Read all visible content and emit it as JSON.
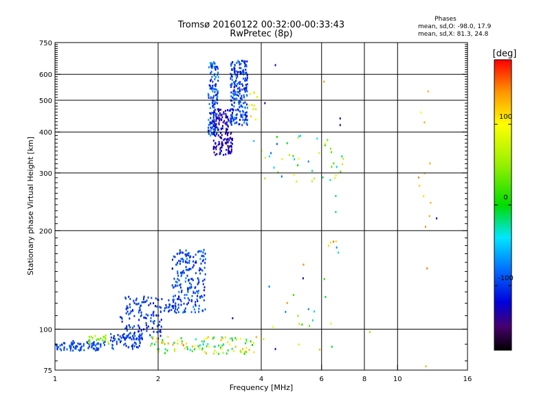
{
  "chart_data": {
    "type": "scatter",
    "title": "Tromsø 20160122 00:32:00-00:33:43",
    "subtitle": "RwPretec (8p)",
    "stats": {
      "heading": "Phases",
      "line1": "mean, sd,O: -98.0, 17.9",
      "line2": "mean, sd,X:  81.3, 24.8"
    },
    "xlabel": "Frequency [MHz]",
    "ylabel": "Stationary phase Virtual Height [km]",
    "xscale": "log",
    "yscale": "log",
    "xlim": [
      1,
      16
    ],
    "ylim": [
      75,
      750
    ],
    "xticks": [
      1,
      2,
      4,
      6,
      8,
      10,
      16
    ],
    "xtick_labels": [
      "1",
      "2",
      "4",
      "6",
      "8",
      "10",
      "16"
    ],
    "yticks": [
      75,
      100,
      200,
      300,
      400,
      500,
      600,
      750
    ],
    "ytick_labels": [
      "75",
      "100",
      "200",
      "300",
      "400",
      "500",
      "600",
      "750"
    ],
    "grid": true,
    "colorbar": {
      "label": "[deg]",
      "range": [
        -180,
        180
      ],
      "ticks": [
        100,
        0,
        -100
      ],
      "tick_labels": [
        "100",
        "0",
        "-100"
      ]
    },
    "clusters": [
      {
        "x_range": [
          1.0,
          1.4
        ],
        "y_range": [
          86,
          92
        ],
        "phase_range": [
          -110,
          -80
        ],
        "count": 90
      },
      {
        "x_range": [
          1.25,
          1.45
        ],
        "y_range": [
          89,
          96
        ],
        "phase_range": [
          20,
          90
        ],
        "count": 22
      },
      {
        "x_range": [
          1.45,
          1.8
        ],
        "y_range": [
          87,
          97
        ],
        "phase_range": [
          -120,
          -80
        ],
        "count": 70
      },
      {
        "x_range": [
          1.55,
          2.05
        ],
        "y_range": [
          93,
          112
        ],
        "phase_range": [
          -120,
          -85
        ],
        "count": 75
      },
      {
        "x_range": [
          1.6,
          2.3
        ],
        "y_range": [
          112,
          126
        ],
        "phase_range": [
          -115,
          -85
        ],
        "count": 80
      },
      {
        "x_range": [
          2.2,
          2.75
        ],
        "y_range": [
          112,
          175
        ],
        "phase_range": [
          -120,
          -70
        ],
        "count": 200
      },
      {
        "x_range": [
          1.9,
          3.9
        ],
        "y_range": [
          84,
          95
        ],
        "phase_range": [
          -60,
          150
        ],
        "count": 110
      },
      {
        "x_range": [
          2.8,
          3.0
        ],
        "y_range": [
          390,
          660
        ],
        "phase_range": [
          -120,
          -60
        ],
        "count": 140
      },
      {
        "x_range": [
          2.9,
          3.3
        ],
        "y_range": [
          340,
          470
        ],
        "phase_range": [
          -150,
          -110
        ],
        "count": 170
      },
      {
        "x_range": [
          3.25,
          3.65
        ],
        "y_range": [
          420,
          660
        ],
        "phase_range": [
          -125,
          -70
        ],
        "count": 220
      },
      {
        "x_range": [
          3.65,
          3.95
        ],
        "y_range": [
          430,
          540
        ],
        "phase_range": [
          60,
          120
        ],
        "count": 12
      },
      {
        "x_range": [
          3.8,
          7.0
        ],
        "y_range": [
          280,
          390
        ],
        "phase_range": [
          -100,
          110
        ],
        "count": 45
      },
      {
        "x_range": [
          3.9,
          6.8
        ],
        "y_range": [
          84,
          190
        ],
        "phase_range": [
          -100,
          150
        ],
        "count": 25
      },
      {
        "x_range": [
          11.5,
          12.6
        ],
        "y_range": [
          150,
          570
        ],
        "phase_range": [
          90,
          150
        ],
        "count": 12
      }
    ],
    "points": [
      {
        "x": 4.4,
        "y": 640,
        "phase": -130
      },
      {
        "x": 6.1,
        "y": 570,
        "phase": 140
      },
      {
        "x": 4.1,
        "y": 490,
        "phase": -140
      },
      {
        "x": 6.8,
        "y": 440,
        "phase": -130
      },
      {
        "x": 6.8,
        "y": 420,
        "phase": -140
      },
      {
        "x": 6.5,
        "y": 185,
        "phase": 150
      },
      {
        "x": 6.6,
        "y": 255,
        "phase": -20
      },
      {
        "x": 6.6,
        "y": 228,
        "phase": -20
      },
      {
        "x": 8.3,
        "y": 98,
        "phase": 50
      },
      {
        "x": 13.0,
        "y": 218,
        "phase": -130
      },
      {
        "x": 12.1,
        "y": 77,
        "phase": 130
      },
      {
        "x": 4.4,
        "y": 87,
        "phase": -130
      },
      {
        "x": 5.3,
        "y": 143,
        "phase": -130
      },
      {
        "x": 3.3,
        "y": 108,
        "phase": -130
      }
    ]
  }
}
